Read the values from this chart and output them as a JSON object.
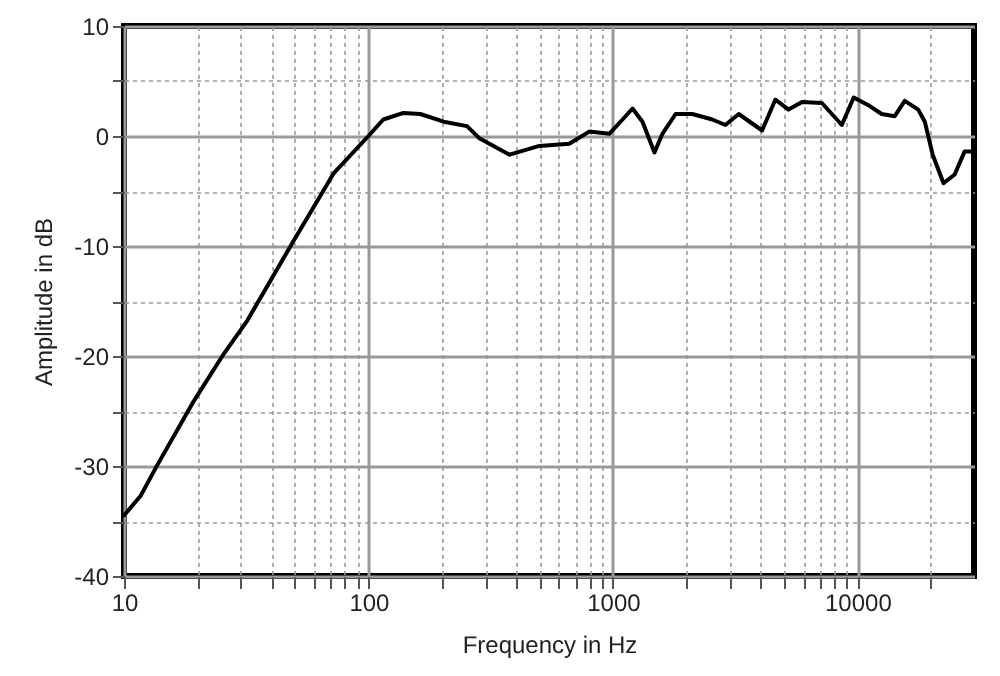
{
  "chart_data": {
    "type": "line",
    "xlabel": "Frequency in Hz",
    "ylabel": "Amplitude in dB",
    "x": [
      10,
      11.7,
      13.7,
      19.3,
      25.6,
      31.9,
      49.5,
      72,
      100,
      115,
      139,
      163,
      203,
      253,
      284,
      378,
      500,
      663,
      800,
      966,
      1095,
      1203,
      1321,
      1479,
      1594,
      1805,
      2112,
      2549,
      2885,
      3271,
      4076,
      4616,
      5232,
      5935,
      7157,
      7866,
      8636,
      9660,
      11090,
      12570,
      14220,
      15630,
      17740,
      18880,
      20330,
      22510,
      25010,
      27470,
      29250
    ],
    "series": [
      {
        "color": "#000000",
        "values": [
          -34.5,
          -32.7,
          -29.9,
          -24.1,
          -19.8,
          -16.8,
          -9.5,
          -3.4,
          0,
          1.5,
          2.1,
          2.0,
          1.3,
          0.9,
          -0.2,
          -1.7,
          -0.9,
          -0.7,
          0.4,
          0.2,
          1.5,
          2.5,
          1.3,
          -1.5,
          0.2,
          2.0,
          2.0,
          1.5,
          1.0,
          2.0,
          0.5,
          3.3,
          2.4,
          3.1,
          3.0,
          2.0,
          1.0,
          3.5,
          2.8,
          2.0,
          1.8,
          3.2,
          2.4,
          1.3,
          -1.7,
          -4.3,
          -3.5,
          -1.4,
          -1.4
        ]
      }
    ],
    "log": "x",
    "xlim": [
      10,
      30000
    ],
    "xticks": [
      10,
      {
        "value": 20,
        "label": null
      },
      {
        "value": 30,
        "label": null
      },
      {
        "value": 40,
        "label": null
      },
      {
        "value": 50,
        "label": null
      },
      {
        "value": 60,
        "label": null
      },
      {
        "value": 70,
        "label": null
      },
      {
        "value": 80,
        "label": null
      },
      {
        "value": 90,
        "label": null
      },
      100,
      {
        "value": 200,
        "label": null
      },
      {
        "value": 300,
        "label": null
      },
      {
        "value": 400,
        "label": null
      },
      {
        "value": 500,
        "label": null
      },
      {
        "value": 600,
        "label": null
      },
      {
        "value": 700,
        "label": null
      },
      {
        "value": 800,
        "label": null
      },
      {
        "value": 900,
        "label": null
      },
      1000,
      {
        "value": 2000,
        "label": null
      },
      {
        "value": 3000,
        "label": null
      },
      {
        "value": 4000,
        "label": null
      },
      {
        "value": 5000,
        "label": null
      },
      {
        "value": 6000,
        "label": null
      },
      {
        "value": 7000,
        "label": null
      },
      {
        "value": 8000,
        "label": null
      },
      {
        "value": 9000,
        "label": null
      },
      10000,
      {
        "value": 20000,
        "label": null
      }
    ],
    "ylim": [
      -40,
      10
    ],
    "yticks": [
      -40,
      {
        "value": -35,
        "label": null
      },
      -30,
      {
        "value": -25,
        "label": null
      },
      -20,
      {
        "value": -15,
        "label": null
      },
      -10,
      {
        "value": -5,
        "label": null
      },
      0,
      {
        "value": 5,
        "label": null
      },
      10
    ],
    "grid": true,
    "line_style": "solid",
    "marker": "none"
  }
}
